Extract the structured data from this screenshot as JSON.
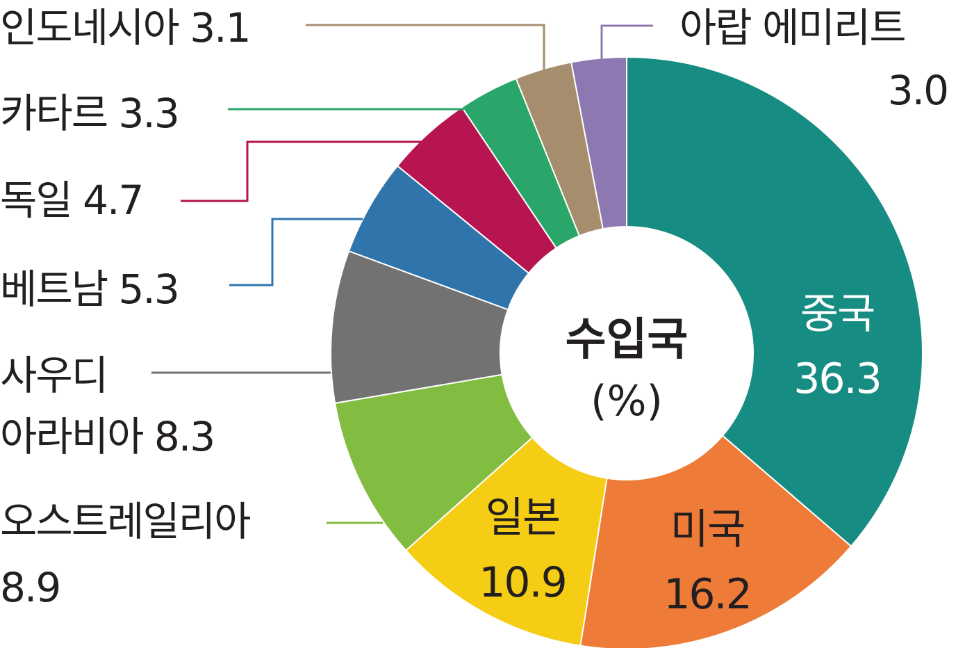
{
  "chart_data": {
    "type": "pie",
    "title": "수입국",
    "unit": "(%)",
    "slices": [
      {
        "label": "중국",
        "value": 36.3,
        "color": "#178c82"
      },
      {
        "label": "미국",
        "value": 16.2,
        "color": "#ee7b38"
      },
      {
        "label": "일본",
        "value": 10.9,
        "color": "#f4cd14"
      },
      {
        "label": "오스트레일리아",
        "value": 8.9,
        "color": "#82bd41"
      },
      {
        "label": "사우디 아라비아",
        "value": 8.3,
        "color": "#727272"
      },
      {
        "label": "베트남",
        "value": 5.3,
        "color": "#2f75ac"
      },
      {
        "label": "독일",
        "value": 4.7,
        "color": "#b6154f"
      },
      {
        "label": "카타르",
        "value": 3.3,
        "color": "#2aa66a"
      },
      {
        "label": "인도네시아",
        "value": 3.1,
        "color": "#a68d6e"
      },
      {
        "label": "아랍 에미리트",
        "value": 3.0,
        "color": "#8e78b1"
      }
    ]
  }
}
